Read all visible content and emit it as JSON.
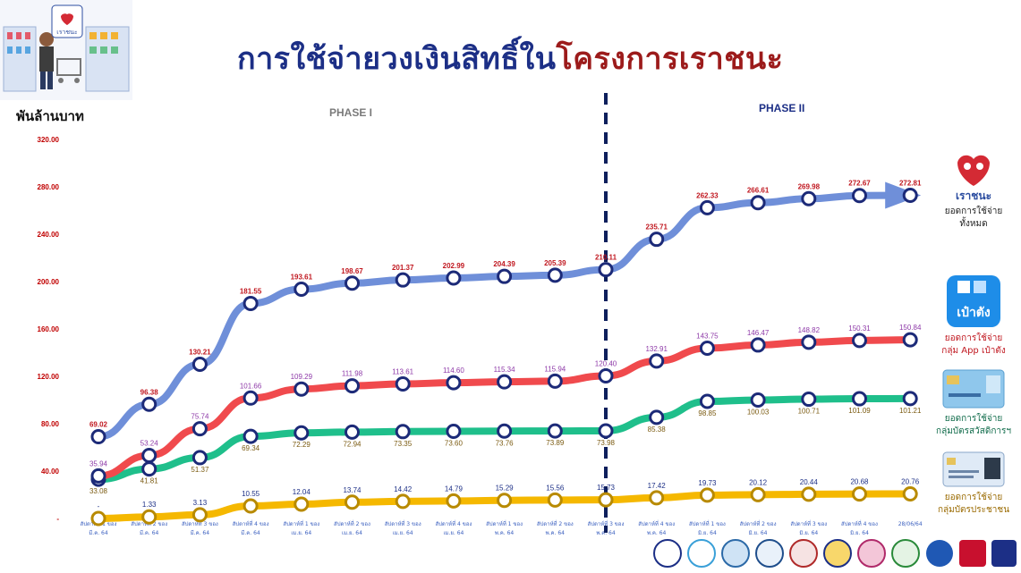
{
  "header": {
    "title_main": "การใช้จ่ายวงเงินสิทธิ์ใน",
    "title_highlight": "โครงการเราชนะ",
    "unit_label": "พันล้านบาท"
  },
  "app_icon_label": "เราชนะ",
  "phase_labels": [
    "PHASE I",
    "PHASE II"
  ],
  "legend": [
    {
      "logo_text": "เราชนะ",
      "line1": "ยอดการใช้จ่าย",
      "line2": "ทั้งหมด",
      "color": "#6f8fd9"
    },
    {
      "logo_text": "เป๋าตัง",
      "line1": "ยอดการใช้จ่าย",
      "line2": "กลุ่ม App เป๋าตัง",
      "color": "#f04a4d"
    },
    {
      "line1": "ยอดการใช้จ่าย",
      "line2": "กลุ่มบัตรสวัสดิการฯ",
      "color": "#1fbf8b"
    },
    {
      "line1": "ยอดการใช้จ่าย",
      "line2": "กลุ่มบัตรประชาชน",
      "color": "#f5b800"
    }
  ],
  "colors": {
    "title": "#1c2f86",
    "title_highlight": "#9c1b1b",
    "axis_tick": "#c00000",
    "marker_ring": "#1c2a78"
  },
  "chart_data": {
    "type": "line",
    "ylim": [
      0,
      320
    ],
    "y_ticks": [
      "-",
      "40.00",
      "80.00",
      "120.00",
      "160.00",
      "200.00",
      "240.00",
      "280.00",
      "320.00"
    ],
    "grid": false,
    "categories": [
      [
        "สัปดาห์ที่ 1 ของ",
        "มี.ค. 64"
      ],
      [
        "สัปดาห์ที่ 2 ของ",
        "มี.ค. 64"
      ],
      [
        "สัปดาห์ที่ 3 ของ",
        "มี.ค. 64"
      ],
      [
        "สัปดาห์ที่ 4 ของ",
        "มี.ค. 64"
      ],
      [
        "สัปดาห์ที่ 1 ของ",
        "เม.ย. 64"
      ],
      [
        "สัปดาห์ที่ 2 ของ",
        "เม.ย. 64"
      ],
      [
        "สัปดาห์ที่ 3 ของ",
        "เม.ย. 64"
      ],
      [
        "สัปดาห์ที่ 4 ของ",
        "เม.ย. 64"
      ],
      [
        "สัปดาห์ที่ 1 ของ",
        "พ.ค. 64"
      ],
      [
        "สัปดาห์ที่ 2 ของ",
        "พ.ค. 64"
      ],
      [
        "สัปดาห์ที่ 3 ของ",
        "พ.ค. 64"
      ],
      [
        "สัปดาห์ที่ 4 ของ",
        "พ.ค. 64"
      ],
      [
        "สัปดาห์ที่ 1 ของ",
        "มิ.ย. 64"
      ],
      [
        "สัปดาห์ที่ 2 ของ",
        "มิ.ย. 64"
      ],
      [
        "สัปดาห์ที่ 3 ของ",
        "มิ.ย. 64"
      ],
      [
        "สัปดาห์ที่ 4 ของ",
        "มิ.ย. 64"
      ],
      [
        "28/06/64",
        ""
      ]
    ],
    "phase_split_after_index": 10,
    "series": [
      {
        "key": "total",
        "color": "#6f8fd9",
        "label_color": "#c0171f",
        "label_pos": "above",
        "values": [
          69.02,
          96.38,
          130.21,
          181.55,
          193.61,
          198.67,
          201.37,
          202.99,
          204.39,
          205.39,
          210.11,
          235.71,
          262.33,
          266.61,
          269.98,
          272.67,
          272.81
        ],
        "labels": [
          "69.02",
          "96.38",
          "130.21",
          "181.55",
          "193.61",
          "198.67",
          "201.37",
          "202.99",
          "204.39",
          "205.39",
          "210.11",
          "235.71",
          "262.33",
          "266.61",
          "269.98",
          "272.67",
          "272.81"
        ]
      },
      {
        "key": "paotang",
        "color": "#f04a4d",
        "label_color": "#8e3aa8",
        "label_pos": "above",
        "values": [
          35.94,
          53.24,
          75.74,
          101.66,
          109.29,
          111.98,
          113.61,
          114.6,
          115.34,
          115.94,
          120.4,
          132.91,
          143.75,
          146.47,
          148.82,
          150.31,
          150.84
        ],
        "labels": [
          "35.94",
          "53.24",
          "75.74",
          "101.66",
          "109.29",
          "111.98",
          "113.61",
          "114.60",
          "115.34",
          "115.94",
          "120.40",
          "132.91",
          "143.75",
          "146.47",
          "148.82",
          "150.31",
          "150.84"
        ]
      },
      {
        "key": "welfare",
        "color": "#1fbf8b",
        "label_color": "#7a5a10",
        "label_pos": "below",
        "values": [
          33.08,
          41.81,
          51.37,
          69.34,
          72.29,
          72.94,
          73.35,
          73.6,
          73.76,
          73.89,
          73.98,
          85.38,
          98.85,
          100.03,
          100.71,
          101.09,
          101.21
        ],
        "labels": [
          "33.08",
          "41.81",
          "51.37",
          "69.34",
          "72.29",
          "72.94",
          "73.35",
          "73.60",
          "73.76",
          "73.89",
          "73.98",
          "85.38",
          "98.85",
          "100.03",
          "100.71",
          "101.09",
          "101.21"
        ]
      },
      {
        "key": "idcard",
        "color": "#f5b800",
        "label_color": "#1c2f86",
        "label_pos": "above",
        "values": [
          0,
          1.33,
          3.13,
          10.55,
          12.04,
          13.74,
          14.42,
          14.79,
          15.29,
          15.56,
          15.73,
          17.42,
          19.73,
          20.12,
          20.44,
          20.68,
          20.76
        ],
        "labels": [
          "-",
          "1.33",
          "3.13",
          "10.55",
          "12.04",
          "13.74",
          "14.42",
          "14.79",
          "15.29",
          "15.56",
          "15.73",
          "17.42",
          "19.73",
          "20.12",
          "20.44",
          "20.68",
          "20.76"
        ]
      }
    ]
  }
}
